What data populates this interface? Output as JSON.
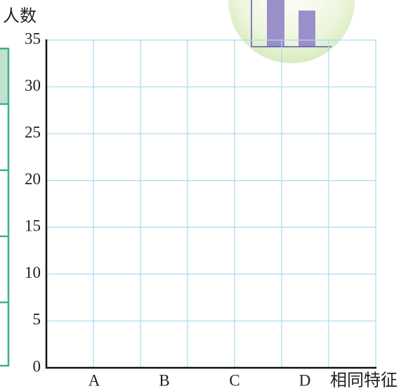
{
  "chart_data": {
    "type": "bar",
    "y_label": "人数",
    "x_label": "相同特征",
    "categories": [
      "A",
      "B",
      "C",
      "D"
    ],
    "ylim": [
      0,
      35
    ],
    "yticks": [
      0,
      5,
      10,
      15,
      20,
      25,
      30,
      35
    ],
    "grid": true
  }
}
